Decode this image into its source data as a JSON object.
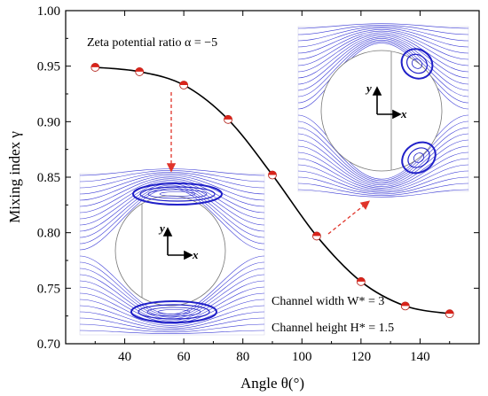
{
  "chart_data": {
    "type": "line",
    "xlabel": "Angle θ(°)",
    "ylabel": "Mixing index γ",
    "xlim": [
      20,
      160
    ],
    "ylim": [
      0.7,
      1.0
    ],
    "x_ticks": [
      "40",
      "60",
      "80",
      "100",
      "120",
      "140"
    ],
    "x_tick_values": [
      40,
      60,
      80,
      100,
      120,
      140
    ],
    "y_ticks": [
      "0.70",
      "0.75",
      "0.80",
      "0.85",
      "0.90",
      "0.95",
      "1.00"
    ],
    "y_tick_values": [
      0.7,
      0.75,
      0.8,
      0.85,
      0.9,
      0.95,
      1.0
    ],
    "grid": false,
    "series": [
      {
        "x": [
          30,
          45,
          60,
          75,
          90,
          105,
          120,
          135,
          150
        ],
        "y": [
          0.949,
          0.945,
          0.933,
          0.902,
          0.852,
          0.797,
          0.756,
          0.734,
          0.727
        ],
        "color": "#000000",
        "marker_color": "#d9241b"
      }
    ],
    "annotations": [
      {
        "id": "zeta",
        "text": "Zeta potential ratio α = −5"
      },
      {
        "id": "width",
        "text": "Channel width W* = 3"
      },
      {
        "id": "height",
        "text": "Channel height H* = 1.5"
      }
    ],
    "insets": [
      {
        "id": "inset-60",
        "points_to": {
          "x": 60,
          "y": 0.933
        },
        "axis_labels": [
          "y",
          "x"
        ]
      },
      {
        "id": "inset-105",
        "points_to": {
          "x": 105,
          "y": 0.797
        },
        "axis_labels": [
          "y",
          "x"
        ]
      }
    ],
    "colors": {
      "streamline": "#3b3bd6",
      "arrow": "#e0342a"
    }
  }
}
